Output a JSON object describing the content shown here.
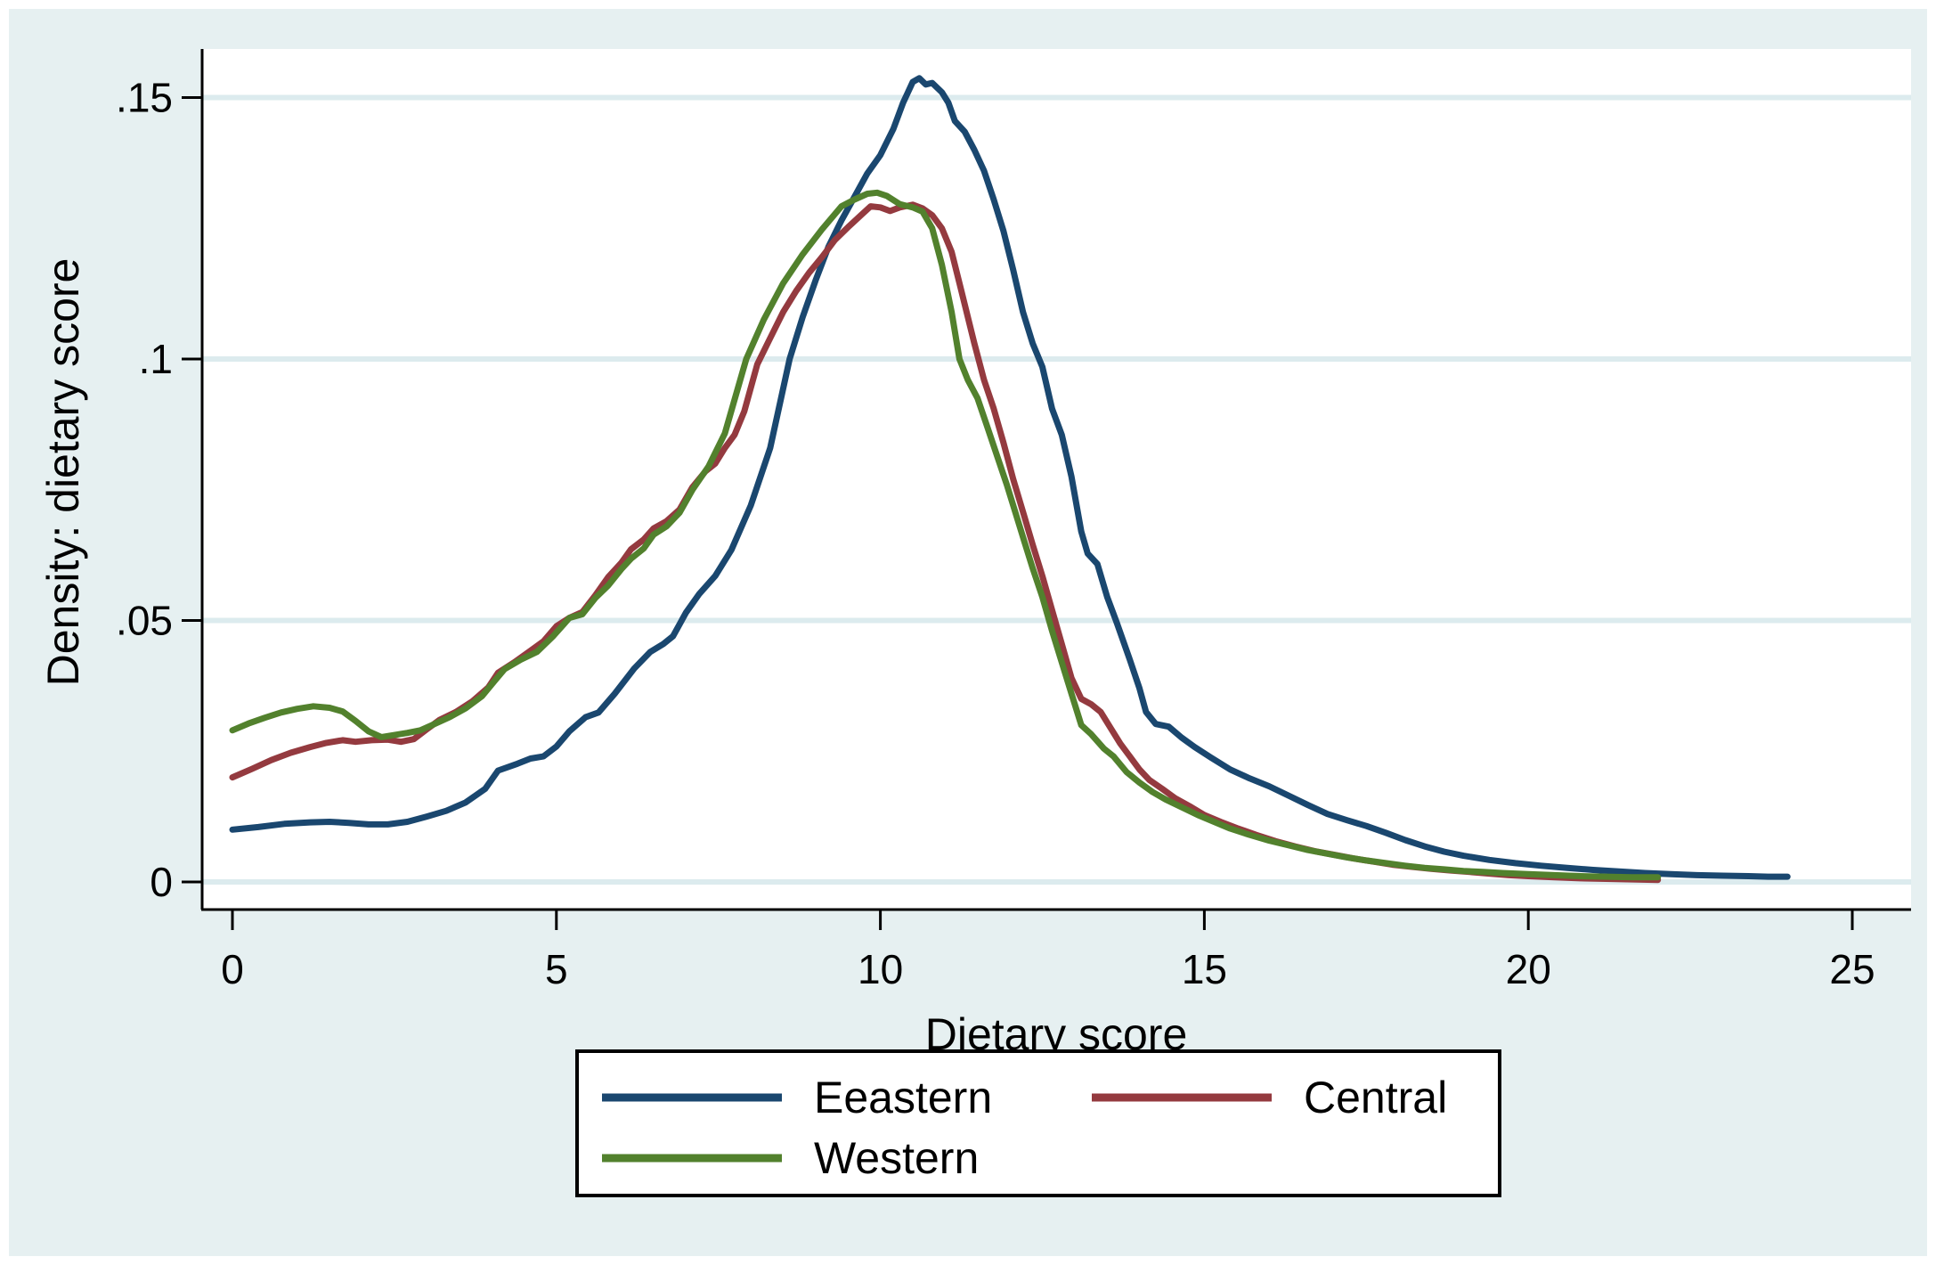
{
  "figure": {
    "background_color": "#E6F0F1",
    "plot_background_color": "#FFFFFF",
    "grid_color": "#DCEBEE",
    "axis_color": "#000000",
    "legend_border_color": "#000000",
    "legend_background_color": "#FFFFFF"
  },
  "chart_data": {
    "type": "line",
    "title": "",
    "xlabel": "Dietary score",
    "ylabel": "Density: dietary score",
    "xlim": [
      0,
      25
    ],
    "ylim": [
      0,
      0.155
    ],
    "grid": true,
    "legend_position": "bottom",
    "x_ticks": {
      "values": [
        0,
        5,
        10,
        15,
        20,
        25
      ],
      "labels": [
        "0",
        "5",
        "10",
        "15",
        "20",
        "25"
      ]
    },
    "y_ticks": {
      "values": [
        0,
        0.05,
        0.1,
        0.15
      ],
      "labels": [
        "0",
        ".05",
        ".1",
        ".15"
      ]
    },
    "series": [
      {
        "name": "Eeastern",
        "color": "#1A476F",
        "points": [
          [
            0,
            0.01
          ],
          [
            0.4,
            0.0105
          ],
          [
            0.8,
            0.0111
          ],
          [
            1.2,
            0.0114
          ],
          [
            1.5,
            0.0115
          ],
          [
            1.8,
            0.0113
          ],
          [
            2.1,
            0.011
          ],
          [
            2.4,
            0.011
          ],
          [
            2.7,
            0.0115
          ],
          [
            3.0,
            0.0125
          ],
          [
            3.3,
            0.0136
          ],
          [
            3.6,
            0.0152
          ],
          [
            3.9,
            0.0178
          ],
          [
            4.1,
            0.0213
          ],
          [
            4.4,
            0.0226
          ],
          [
            4.6,
            0.0236
          ],
          [
            4.8,
            0.024
          ],
          [
            5.0,
            0.0259
          ],
          [
            5.2,
            0.0288
          ],
          [
            5.45,
            0.0315
          ],
          [
            5.65,
            0.0324
          ],
          [
            5.9,
            0.036
          ],
          [
            6.2,
            0.0408
          ],
          [
            6.45,
            0.044
          ],
          [
            6.65,
            0.0455
          ],
          [
            6.8,
            0.047
          ],
          [
            7.0,
            0.0515
          ],
          [
            7.2,
            0.055
          ],
          [
            7.45,
            0.0585
          ],
          [
            7.7,
            0.0635
          ],
          [
            8.0,
            0.072
          ],
          [
            8.3,
            0.083
          ],
          [
            8.6,
            0.1
          ],
          [
            8.8,
            0.108
          ],
          [
            9.0,
            0.115
          ],
          [
            9.2,
            0.1215
          ],
          [
            9.4,
            0.1265
          ],
          [
            9.6,
            0.131
          ],
          [
            9.8,
            0.1355
          ],
          [
            10.0,
            0.139
          ],
          [
            10.2,
            0.144
          ],
          [
            10.35,
            0.149
          ],
          [
            10.5,
            0.153
          ],
          [
            10.6,
            0.1537
          ],
          [
            10.7,
            0.1525
          ],
          [
            10.8,
            0.1528
          ],
          [
            10.95,
            0.151
          ],
          [
            11.05,
            0.149
          ],
          [
            11.15,
            0.1455
          ],
          [
            11.3,
            0.1435
          ],
          [
            11.45,
            0.14
          ],
          [
            11.6,
            0.136
          ],
          [
            11.75,
            0.1305
          ],
          [
            11.9,
            0.1245
          ],
          [
            12.05,
            0.117
          ],
          [
            12.2,
            0.109
          ],
          [
            12.35,
            0.103
          ],
          [
            12.5,
            0.0985
          ],
          [
            12.65,
            0.0905
          ],
          [
            12.8,
            0.0855
          ],
          [
            12.95,
            0.0775
          ],
          [
            13.1,
            0.067
          ],
          [
            13.2,
            0.0628
          ],
          [
            13.35,
            0.0608
          ],
          [
            13.5,
            0.0545
          ],
          [
            13.65,
            0.0495
          ],
          [
            13.85,
            0.0425
          ],
          [
            14.0,
            0.037
          ],
          [
            14.1,
            0.0325
          ],
          [
            14.25,
            0.0302
          ],
          [
            14.45,
            0.0297
          ],
          [
            14.65,
            0.0276
          ],
          [
            14.85,
            0.0258
          ],
          [
            15.1,
            0.0238
          ],
          [
            15.4,
            0.0215
          ],
          [
            15.7,
            0.0198
          ],
          [
            16.0,
            0.0183
          ],
          [
            16.3,
            0.0165
          ],
          [
            16.6,
            0.0147
          ],
          [
            16.9,
            0.013
          ],
          [
            17.2,
            0.0118
          ],
          [
            17.5,
            0.0107
          ],
          [
            17.8,
            0.0094
          ],
          [
            18.1,
            0.008
          ],
          [
            18.4,
            0.0068
          ],
          [
            18.7,
            0.0058
          ],
          [
            19.0,
            0.005
          ],
          [
            19.4,
            0.0042
          ],
          [
            19.8,
            0.0036
          ],
          [
            20.2,
            0.0031
          ],
          [
            20.6,
            0.0027
          ],
          [
            21.0,
            0.0023
          ],
          [
            21.4,
            0.002
          ],
          [
            21.8,
            0.0017
          ],
          [
            22.2,
            0.0015
          ],
          [
            22.6,
            0.0013
          ],
          [
            23.0,
            0.0012
          ],
          [
            23.4,
            0.0011
          ],
          [
            23.7,
            0.001
          ],
          [
            24.0,
            0.001
          ]
        ]
      },
      {
        "name": "Central",
        "color": "#943A3F",
        "points": [
          [
            0,
            0.02
          ],
          [
            0.3,
            0.0216
          ],
          [
            0.6,
            0.0233
          ],
          [
            0.9,
            0.0247
          ],
          [
            1.2,
            0.0258
          ],
          [
            1.45,
            0.0266
          ],
          [
            1.7,
            0.0271
          ],
          [
            1.9,
            0.0268
          ],
          [
            2.15,
            0.0271
          ],
          [
            2.4,
            0.0272
          ],
          [
            2.6,
            0.0268
          ],
          [
            2.8,
            0.0273
          ],
          [
            3.0,
            0.0292
          ],
          [
            3.2,
            0.031
          ],
          [
            3.45,
            0.0325
          ],
          [
            3.7,
            0.0345
          ],
          [
            3.95,
            0.0372
          ],
          [
            4.1,
            0.04
          ],
          [
            4.35,
            0.042
          ],
          [
            4.6,
            0.0442
          ],
          [
            4.8,
            0.046
          ],
          [
            5.0,
            0.0489
          ],
          [
            5.2,
            0.0505
          ],
          [
            5.4,
            0.0516
          ],
          [
            5.6,
            0.0548
          ],
          [
            5.8,
            0.0583
          ],
          [
            6.0,
            0.061
          ],
          [
            6.15,
            0.0636
          ],
          [
            6.35,
            0.0655
          ],
          [
            6.5,
            0.0676
          ],
          [
            6.7,
            0.069
          ],
          [
            6.9,
            0.0712
          ],
          [
            7.1,
            0.0755
          ],
          [
            7.3,
            0.0785
          ],
          [
            7.45,
            0.08
          ],
          [
            7.6,
            0.083
          ],
          [
            7.75,
            0.0855
          ],
          [
            7.9,
            0.09
          ],
          [
            8.1,
            0.099
          ],
          [
            8.3,
            0.104
          ],
          [
            8.5,
            0.109
          ],
          [
            8.7,
            0.113
          ],
          [
            8.9,
            0.1165
          ],
          [
            9.1,
            0.1195
          ],
          [
            9.3,
            0.1228
          ],
          [
            9.5,
            0.1252
          ],
          [
            9.7,
            0.1275
          ],
          [
            9.85,
            0.1292
          ],
          [
            10.0,
            0.129
          ],
          [
            10.15,
            0.1283
          ],
          [
            10.3,
            0.129
          ],
          [
            10.5,
            0.1295
          ],
          [
            10.65,
            0.1288
          ],
          [
            10.8,
            0.1275
          ],
          [
            10.95,
            0.125
          ],
          [
            11.1,
            0.1205
          ],
          [
            11.25,
            0.113
          ],
          [
            11.45,
            0.103
          ],
          [
            11.6,
            0.096
          ],
          [
            11.75,
            0.0905
          ],
          [
            11.9,
            0.084
          ],
          [
            12.05,
            0.077
          ],
          [
            12.22,
            0.07
          ],
          [
            12.35,
            0.0645
          ],
          [
            12.5,
            0.0585
          ],
          [
            12.65,
            0.052
          ],
          [
            12.8,
            0.0455
          ],
          [
            12.95,
            0.039
          ],
          [
            13.1,
            0.035
          ],
          [
            13.25,
            0.034
          ],
          [
            13.4,
            0.0325
          ],
          [
            13.55,
            0.0295
          ],
          [
            13.7,
            0.0265
          ],
          [
            13.85,
            0.024
          ],
          [
            14.0,
            0.0215
          ],
          [
            14.15,
            0.0195
          ],
          [
            14.35,
            0.0178
          ],
          [
            14.55,
            0.016
          ],
          [
            14.8,
            0.0143
          ],
          [
            15.0,
            0.0128
          ],
          [
            15.25,
            0.0115
          ],
          [
            15.5,
            0.0103
          ],
          [
            15.8,
            0.009
          ],
          [
            16.1,
            0.0078
          ],
          [
            16.4,
            0.0068
          ],
          [
            16.7,
            0.0059
          ],
          [
            17.0,
            0.0052
          ],
          [
            17.3,
            0.0045
          ],
          [
            17.6,
            0.0039
          ],
          [
            17.9,
            0.0033
          ],
          [
            18.2,
            0.0029
          ],
          [
            18.5,
            0.0025
          ],
          [
            18.8,
            0.0022
          ],
          [
            19.1,
            0.0019
          ],
          [
            19.4,
            0.0016
          ],
          [
            19.7,
            0.0013
          ],
          [
            20.0,
            0.0011
          ],
          [
            20.4,
            0.0009
          ],
          [
            20.8,
            0.0007
          ],
          [
            21.2,
            0.0006
          ],
          [
            21.6,
            0.0005
          ],
          [
            22.0,
            0.0004
          ]
        ]
      },
      {
        "name": "Western",
        "color": "#52812D",
        "points": [
          [
            0,
            0.029
          ],
          [
            0.25,
            0.0303
          ],
          [
            0.5,
            0.0314
          ],
          [
            0.75,
            0.0324
          ],
          [
            1.0,
            0.0331
          ],
          [
            1.25,
            0.0336
          ],
          [
            1.5,
            0.0333
          ],
          [
            1.7,
            0.0326
          ],
          [
            1.9,
            0.0308
          ],
          [
            2.1,
            0.0288
          ],
          [
            2.3,
            0.0277
          ],
          [
            2.5,
            0.0281
          ],
          [
            2.7,
            0.0285
          ],
          [
            2.9,
            0.029
          ],
          [
            3.1,
            0.0301
          ],
          [
            3.35,
            0.0315
          ],
          [
            3.6,
            0.0332
          ],
          [
            3.85,
            0.0355
          ],
          [
            4.05,
            0.0385
          ],
          [
            4.2,
            0.0407
          ],
          [
            4.45,
            0.0425
          ],
          [
            4.7,
            0.044
          ],
          [
            4.95,
            0.047
          ],
          [
            5.2,
            0.0505
          ],
          [
            5.4,
            0.0512
          ],
          [
            5.6,
            0.0543
          ],
          [
            5.8,
            0.0567
          ],
          [
            6.0,
            0.0598
          ],
          [
            6.15,
            0.0618
          ],
          [
            6.35,
            0.0638
          ],
          [
            6.5,
            0.0664
          ],
          [
            6.7,
            0.068
          ],
          [
            6.9,
            0.0706
          ],
          [
            7.1,
            0.075
          ],
          [
            7.35,
            0.0795
          ],
          [
            7.6,
            0.0858
          ],
          [
            7.93,
            0.1
          ],
          [
            8.2,
            0.1075
          ],
          [
            8.5,
            0.1145
          ],
          [
            8.8,
            0.12
          ],
          [
            9.1,
            0.1248
          ],
          [
            9.4,
            0.1292
          ],
          [
            9.6,
            0.1305
          ],
          [
            9.8,
            0.1316
          ],
          [
            9.95,
            0.1318
          ],
          [
            10.1,
            0.1312
          ],
          [
            10.3,
            0.1296
          ],
          [
            10.5,
            0.129
          ],
          [
            10.65,
            0.1282
          ],
          [
            10.8,
            0.125
          ],
          [
            10.95,
            0.118
          ],
          [
            11.1,
            0.109
          ],
          [
            11.22,
            0.1
          ],
          [
            11.35,
            0.096
          ],
          [
            11.5,
            0.0925
          ],
          [
            11.65,
            0.087
          ],
          [
            11.8,
            0.0815
          ],
          [
            11.95,
            0.076
          ],
          [
            12.1,
            0.07
          ],
          [
            12.22,
            0.0652
          ],
          [
            12.35,
            0.06
          ],
          [
            12.5,
            0.0545
          ],
          [
            12.65,
            0.048
          ],
          [
            12.8,
            0.042
          ],
          [
            12.95,
            0.036
          ],
          [
            13.1,
            0.03
          ],
          [
            13.25,
            0.0283
          ],
          [
            13.45,
            0.0255
          ],
          [
            13.6,
            0.024
          ],
          [
            13.8,
            0.021
          ],
          [
            14.0,
            0.019
          ],
          [
            14.2,
            0.0172
          ],
          [
            14.4,
            0.0158
          ],
          [
            14.65,
            0.0143
          ],
          [
            14.9,
            0.0128
          ],
          [
            15.15,
            0.0115
          ],
          [
            15.4,
            0.0102
          ],
          [
            15.7,
            0.009
          ],
          [
            16.0,
            0.0079
          ],
          [
            16.3,
            0.007
          ],
          [
            16.6,
            0.0061
          ],
          [
            16.9,
            0.0054
          ],
          [
            17.2,
            0.0047
          ],
          [
            17.5,
            0.0041
          ],
          [
            17.8,
            0.0036
          ],
          [
            18.1,
            0.0031
          ],
          [
            18.4,
            0.0027
          ],
          [
            18.7,
            0.0024
          ],
          [
            19.0,
            0.0021
          ],
          [
            19.3,
            0.0019
          ],
          [
            19.6,
            0.0017
          ],
          [
            20.0,
            0.0015
          ],
          [
            20.4,
            0.0013
          ],
          [
            20.8,
            0.0011
          ],
          [
            21.2,
            0.001
          ],
          [
            21.6,
            0.0009
          ],
          [
            22.0,
            0.0009
          ]
        ]
      }
    ]
  }
}
